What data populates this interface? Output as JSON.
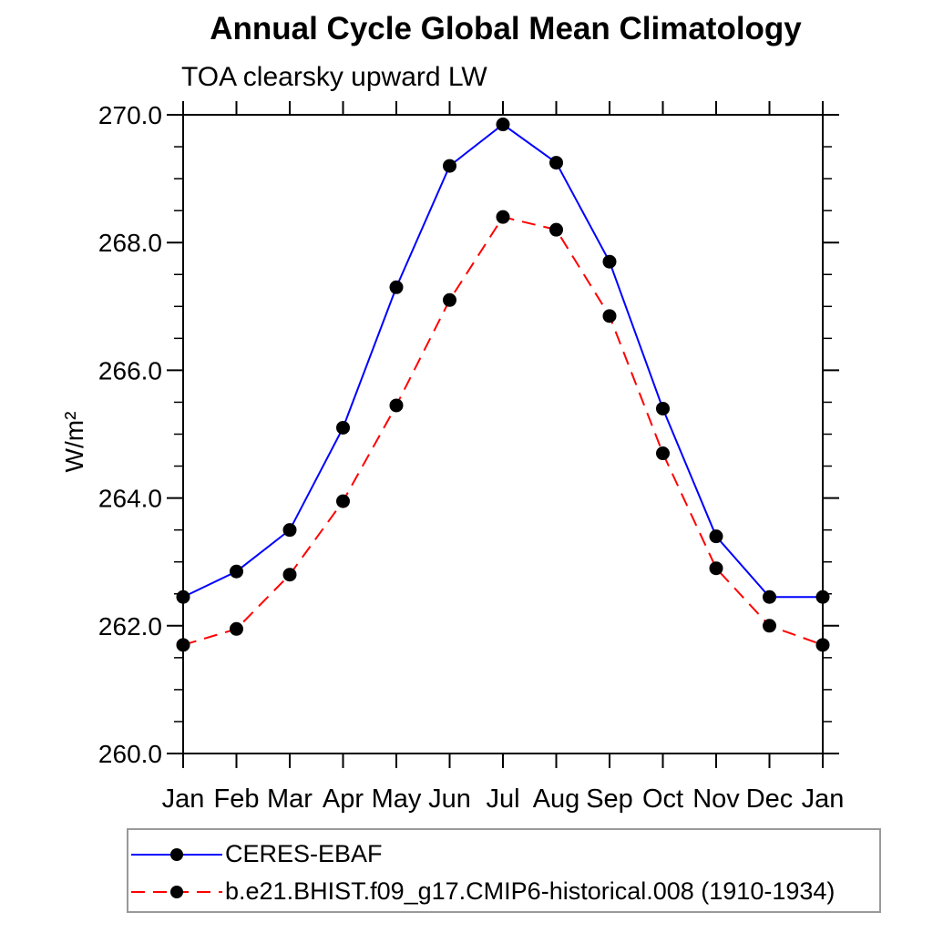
{
  "header": {
    "title": "Annual Cycle Global Mean Climatology",
    "subtitle": "TOA clearsky upward LW"
  },
  "chart_data": {
    "type": "line",
    "title": "Annual Cycle Global Mean Climatology",
    "subtitle": "TOA clearsky upward LW",
    "xlabel": "",
    "ylabel": "W/m²",
    "categories": [
      "Jan",
      "Feb",
      "Mar",
      "Apr",
      "May",
      "Jun",
      "Jul",
      "Aug",
      "Sep",
      "Oct",
      "Nov",
      "Dec",
      "Jan"
    ],
    "ylim": [
      260.0,
      270.0
    ],
    "ytick_major": 2.0,
    "ytick_minor": 0.5,
    "ytick_label_format_decimals": 1,
    "grid": false,
    "legend_position": "bottom",
    "frame_color": "#000000",
    "series": [
      {
        "name": "CERES-EBAF",
        "color": "#0000ff",
        "style": "solid",
        "marker": "circle",
        "marker_color": "#000000",
        "values": [
          262.45,
          262.85,
          263.5,
          265.1,
          267.3,
          269.2,
          269.85,
          269.25,
          267.7,
          265.4,
          263.4,
          262.45,
          262.45
        ]
      },
      {
        "name": "b.e21.BHIST.f09_g17.CMIP6-historical.008 (1910-1934)",
        "color": "#ff0000",
        "style": "dashed",
        "marker": "circle",
        "marker_color": "#000000",
        "values": [
          261.7,
          261.95,
          262.8,
          263.95,
          265.45,
          267.1,
          268.4,
          268.2,
          266.85,
          264.7,
          262.9,
          262.0,
          261.7
        ]
      }
    ]
  }
}
